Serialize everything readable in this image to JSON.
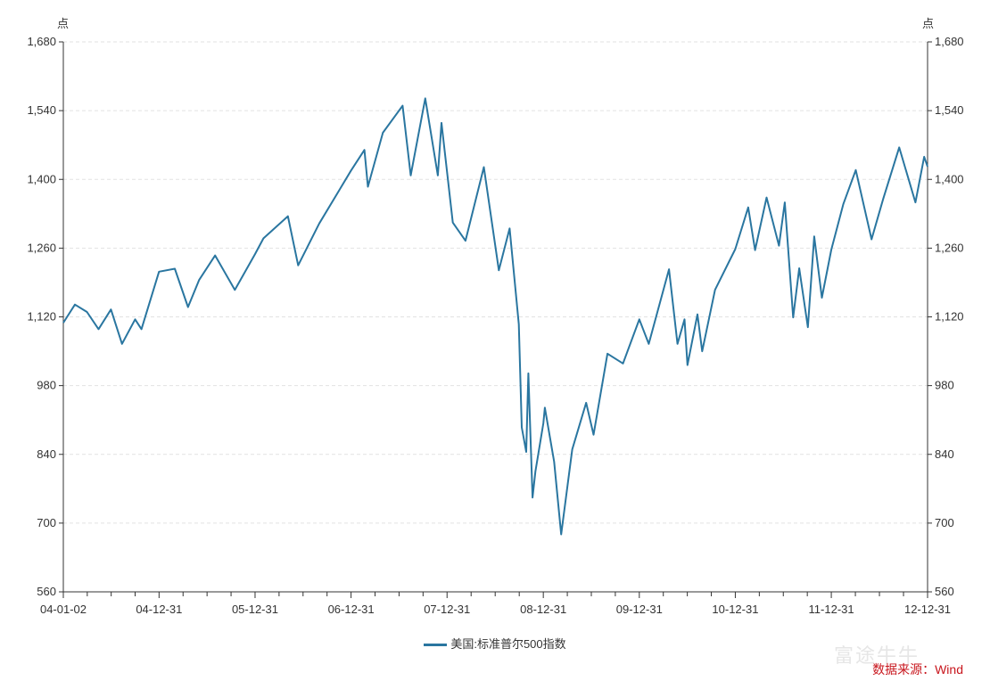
{
  "chart_data": {
    "type": "line",
    "y_unit_left": "点",
    "y_unit_right": "点",
    "ylim": [
      560,
      1680
    ],
    "yticks": [
      "560",
      "700",
      "840",
      "980",
      "1,120",
      "1,260",
      "1,400",
      "1,540",
      "1,680"
    ],
    "ytick_values": [
      560,
      700,
      840,
      980,
      1120,
      1260,
      1400,
      1540,
      1680
    ],
    "xticks": [
      "04-01-02",
      "04-12-31",
      "05-12-31",
      "06-12-31",
      "07-12-31",
      "08-12-31",
      "09-12-31",
      "10-12-31",
      "11-12-31",
      "12-12-31"
    ],
    "xtick_dates": [
      "2004-01-02",
      "2004-12-31",
      "2005-12-31",
      "2006-12-31",
      "2007-12-31",
      "2008-12-31",
      "2009-12-31",
      "2010-12-31",
      "2011-12-31",
      "2012-12-31"
    ],
    "xlim": [
      "2004-01-02",
      "2012-12-31"
    ],
    "grid": true,
    "legend_position": "bottom",
    "series": [
      {
        "name": "美国:标准普尔500指数",
        "color": "#2a76a0",
        "points": [
          [
            "2004-01-02",
            1108
          ],
          [
            "2004-02-15",
            1145
          ],
          [
            "2004-04-01",
            1130
          ],
          [
            "2004-05-15",
            1095
          ],
          [
            "2004-07-01",
            1135
          ],
          [
            "2004-08-12",
            1065
          ],
          [
            "2004-10-01",
            1115
          ],
          [
            "2004-10-25",
            1095
          ],
          [
            "2004-12-31",
            1212
          ],
          [
            "2005-03-01",
            1218
          ],
          [
            "2005-04-20",
            1140
          ],
          [
            "2005-06-01",
            1195
          ],
          [
            "2005-08-01",
            1245
          ],
          [
            "2005-10-15",
            1175
          ],
          [
            "2005-12-31",
            1248
          ],
          [
            "2006-02-01",
            1280
          ],
          [
            "2006-05-05",
            1325
          ],
          [
            "2006-06-13",
            1225
          ],
          [
            "2006-09-01",
            1310
          ],
          [
            "2006-12-31",
            1418
          ],
          [
            "2007-02-20",
            1460
          ],
          [
            "2007-03-05",
            1385
          ],
          [
            "2007-05-01",
            1495
          ],
          [
            "2007-07-15",
            1550
          ],
          [
            "2007-08-15",
            1408
          ],
          [
            "2007-10-09",
            1565
          ],
          [
            "2007-11-26",
            1408
          ],
          [
            "2007-12-10",
            1515
          ],
          [
            "2008-01-22",
            1312
          ],
          [
            "2008-03-10",
            1275
          ],
          [
            "2008-05-19",
            1425
          ],
          [
            "2008-07-15",
            1215
          ],
          [
            "2008-08-25",
            1300
          ],
          [
            "2008-09-29",
            1105
          ],
          [
            "2008-10-10",
            895
          ],
          [
            "2008-10-27",
            845
          ],
          [
            "2008-11-04",
            1005
          ],
          [
            "2008-11-20",
            752
          ],
          [
            "2008-12-01",
            805
          ],
          [
            "2008-12-31",
            903
          ],
          [
            "2009-01-06",
            935
          ],
          [
            "2009-02-10",
            825
          ],
          [
            "2009-03-09",
            677
          ],
          [
            "2009-04-20",
            850
          ],
          [
            "2009-06-12",
            945
          ],
          [
            "2009-07-10",
            880
          ],
          [
            "2009-09-01",
            1045
          ],
          [
            "2009-10-30",
            1025
          ],
          [
            "2009-12-31",
            1115
          ],
          [
            "2010-02-05",
            1065
          ],
          [
            "2010-04-23",
            1217
          ],
          [
            "2010-05-25",
            1065
          ],
          [
            "2010-06-21",
            1115
          ],
          [
            "2010-07-02",
            1022
          ],
          [
            "2010-08-09",
            1125
          ],
          [
            "2010-08-27",
            1050
          ],
          [
            "2010-10-15",
            1175
          ],
          [
            "2010-12-31",
            1258
          ],
          [
            "2011-02-18",
            1343
          ],
          [
            "2011-03-16",
            1256
          ],
          [
            "2011-04-29",
            1363
          ],
          [
            "2011-06-15",
            1265
          ],
          [
            "2011-07-07",
            1353
          ],
          [
            "2011-08-08",
            1119
          ],
          [
            "2011-08-31",
            1219
          ],
          [
            "2011-10-03",
            1099
          ],
          [
            "2011-10-27",
            1284
          ],
          [
            "2011-11-25",
            1159
          ],
          [
            "2011-12-31",
            1257
          ],
          [
            "2012-02-15",
            1350
          ],
          [
            "2012-04-02",
            1419
          ],
          [
            "2012-06-01",
            1278
          ],
          [
            "2012-07-15",
            1360
          ],
          [
            "2012-09-14",
            1465
          ],
          [
            "2012-11-15",
            1353
          ],
          [
            "2012-12-18",
            1446
          ],
          [
            "2012-12-31",
            1426
          ]
        ]
      }
    ]
  },
  "legend": {
    "label": "美国:标准普尔500指数"
  },
  "source_text": "数据来源：Wind",
  "watermark_text": "富途牛牛",
  "colors": {
    "line": "#2a76a0",
    "grid": "#e2e2e2",
    "axis": "#333333",
    "source": "#c8161d"
  }
}
